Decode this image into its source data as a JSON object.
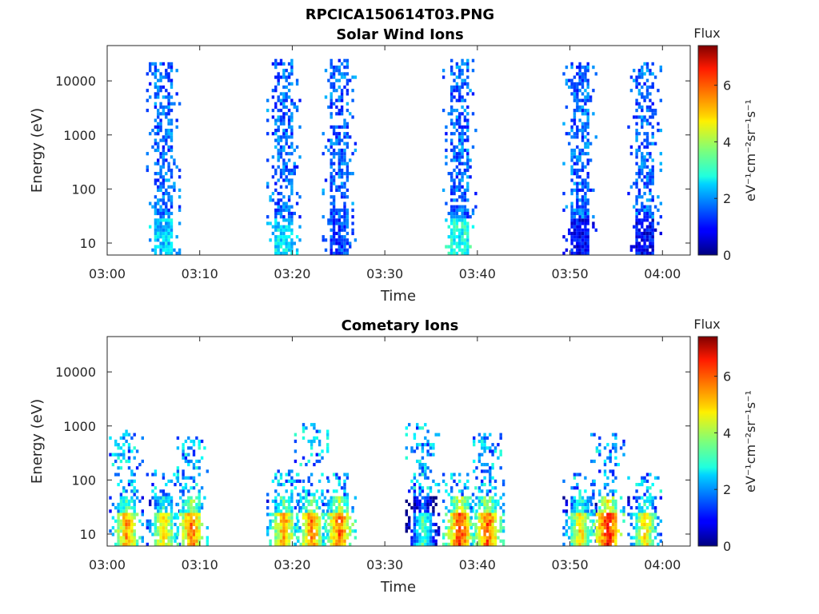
{
  "figure": {
    "title": "RPCICA150614T03.PNG"
  },
  "colorbar": {
    "label": "Flux",
    "unit": "eV⁻¹cm⁻²sr⁻¹s⁻¹",
    "range": [
      0,
      7.4
    ],
    "ticks": [
      "0",
      "2",
      "4",
      "6"
    ]
  },
  "chart_data": [
    {
      "type": "heatmap",
      "title": "Solar Wind Ions",
      "xlabel": "Time",
      "ylabel": "Energy (eV)",
      "x_range_minutes": [
        "03:00",
        "04:03"
      ],
      "y_scale": "log",
      "y_range": [
        6,
        45000
      ],
      "xticks": [
        "03:00",
        "03:10",
        "03:20",
        "03:30",
        "03:40",
        "03:50",
        "04:00"
      ],
      "yticks": [
        "10",
        "100",
        "1000",
        "10000"
      ],
      "colormap": "jet",
      "bursts": [
        {
          "center": "03:06",
          "flux_low_energy": 3.0,
          "flux_high_energy": 1.0,
          "max_energy": 20000
        },
        {
          "center": "03:19",
          "flux_low_energy": 3.2,
          "flux_high_energy": 1.0,
          "max_energy": 25000
        },
        {
          "center": "03:25",
          "flux_low_energy": 2.0,
          "flux_high_energy": 1.0,
          "max_energy": 25000
        },
        {
          "center": "03:38",
          "flux_low_energy": 3.5,
          "flux_high_energy": 1.0,
          "max_energy": 24000
        },
        {
          "center": "03:51",
          "flux_low_energy": 1.5,
          "flux_high_energy": 1.0,
          "max_energy": 20000
        },
        {
          "center": "03:58",
          "flux_low_energy": 1.5,
          "flux_high_energy": 1.0,
          "max_energy": 20000
        }
      ]
    },
    {
      "type": "heatmap",
      "title": "Cometary Ions",
      "xlabel": "Time",
      "ylabel": "Energy (eV)",
      "x_range_minutes": [
        "03:00",
        "04:03"
      ],
      "y_scale": "log",
      "y_range": [
        6,
        45000
      ],
      "xticks": [
        "03:00",
        "03:10",
        "03:20",
        "03:30",
        "03:40",
        "03:50",
        "04:00"
      ],
      "yticks": [
        "10",
        "100",
        "1000",
        "10000"
      ],
      "colormap": "jet",
      "bursts": [
        {
          "center": "03:02",
          "peak_flux": 6.0,
          "max_energy": 800
        },
        {
          "center": "03:06",
          "peak_flux": 5.5,
          "max_energy": 150
        },
        {
          "center": "03:09",
          "peak_flux": 6.3,
          "max_energy": 600
        },
        {
          "center": "03:19",
          "peak_flux": 6.0,
          "max_energy": 150
        },
        {
          "center": "03:22",
          "peak_flux": 6.3,
          "max_energy": 1100
        },
        {
          "center": "03:25",
          "peak_flux": 6.5,
          "max_energy": 120
        },
        {
          "center": "03:34",
          "peak_flux": 4.0,
          "max_energy": 1000
        },
        {
          "center": "03:38",
          "peak_flux": 6.8,
          "max_energy": 120
        },
        {
          "center": "03:41",
          "peak_flux": 6.5,
          "max_energy": 700
        },
        {
          "center": "03:51",
          "peak_flux": 5.5,
          "max_energy": 120
        },
        {
          "center": "03:54",
          "peak_flux": 7.0,
          "max_energy": 650
        },
        {
          "center": "03:58",
          "peak_flux": 5.5,
          "max_energy": 120
        }
      ]
    }
  ]
}
